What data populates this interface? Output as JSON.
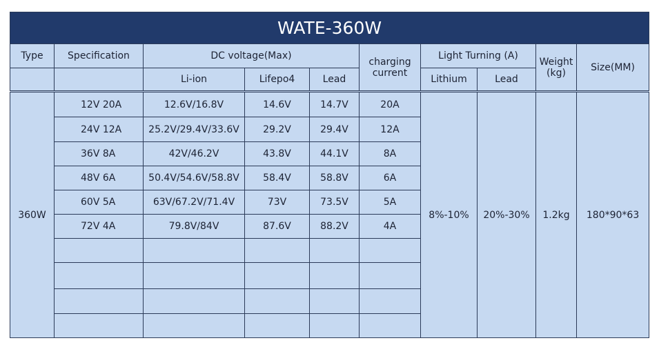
{
  "title": "WATE-360W",
  "header": {
    "type": "Type",
    "specification": "Specification",
    "dc_voltage": "DC voltage(Max)",
    "li_ion": "Li-ion",
    "lifepo4": "Lifepo4",
    "lead": "Lead",
    "charging_current": "charging current",
    "light_turning": "Light Turning (A)",
    "lithium": "Lithium",
    "light_lead": "Lead",
    "weight": "Weight (kg)",
    "size": "Size(MM)"
  },
  "model": "360W",
  "rows": [
    [
      "12V 20A",
      "12.6V/16.8V",
      "14.6V",
      "14.7V",
      "20A"
    ],
    [
      "24V 12A",
      "25.2V/29.4V/33.6V",
      "29.2V",
      "29.4V",
      "12A"
    ],
    [
      "36V 8A",
      "42V/46.2V",
      "43.8V",
      "44.1V",
      "8A"
    ],
    [
      "48V 6A",
      "50.4V/54.6V/58.8V",
      "58.4V",
      "58.8V",
      "6A"
    ],
    [
      "60V 5A",
      "63V/67.2V/71.4V",
      "73V",
      "73.5V",
      "5A"
    ],
    [
      "72V 4A",
      "79.8V/84V",
      "87.6V",
      "88.2V",
      "4A"
    ]
  ],
  "light_turning": {
    "lithium": "8%-10%",
    "lead": "20%-30%"
  },
  "weight": "1.2kg",
  "size": "180*90*63"
}
